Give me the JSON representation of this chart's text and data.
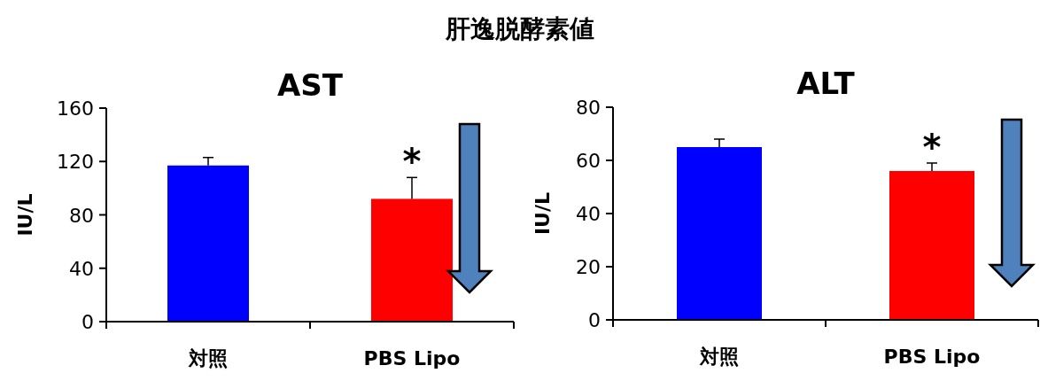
{
  "chart_data": [
    {
      "type": "bar",
      "title": "AST",
      "ylabel": "IU/L",
      "categories": [
        "対照",
        "PBS Lipo"
      ],
      "values": [
        117,
        92
      ],
      "colors": [
        "#0000ff",
        "#ff0000"
      ],
      "errors": [
        6,
        16
      ],
      "ylim": [
        0,
        160
      ],
      "yticks": [
        0,
        40,
        80,
        120,
        160
      ],
      "grid": false,
      "annotations": [
        "肝逸脱酵素値",
        {
          "text": "*",
          "x": "PBS Lipo",
          "y": 108
        }
      ]
    },
    {
      "type": "bar",
      "title": "ALT",
      "ylabel": "IU/L",
      "categories": [
        "対照",
        "PBS Lipo"
      ],
      "values": [
        65,
        56
      ],
      "colors": [
        "#0000ff",
        "#ff0000"
      ],
      "errors": [
        3,
        3
      ],
      "ylim": [
        0,
        80
      ],
      "yticks": [
        0,
        20,
        40,
        60,
        80
      ],
      "grid": false,
      "annotations": [
        {
          "text": "*",
          "x": "PBS Lipo",
          "y": 59
        }
      ]
    }
  ]
}
